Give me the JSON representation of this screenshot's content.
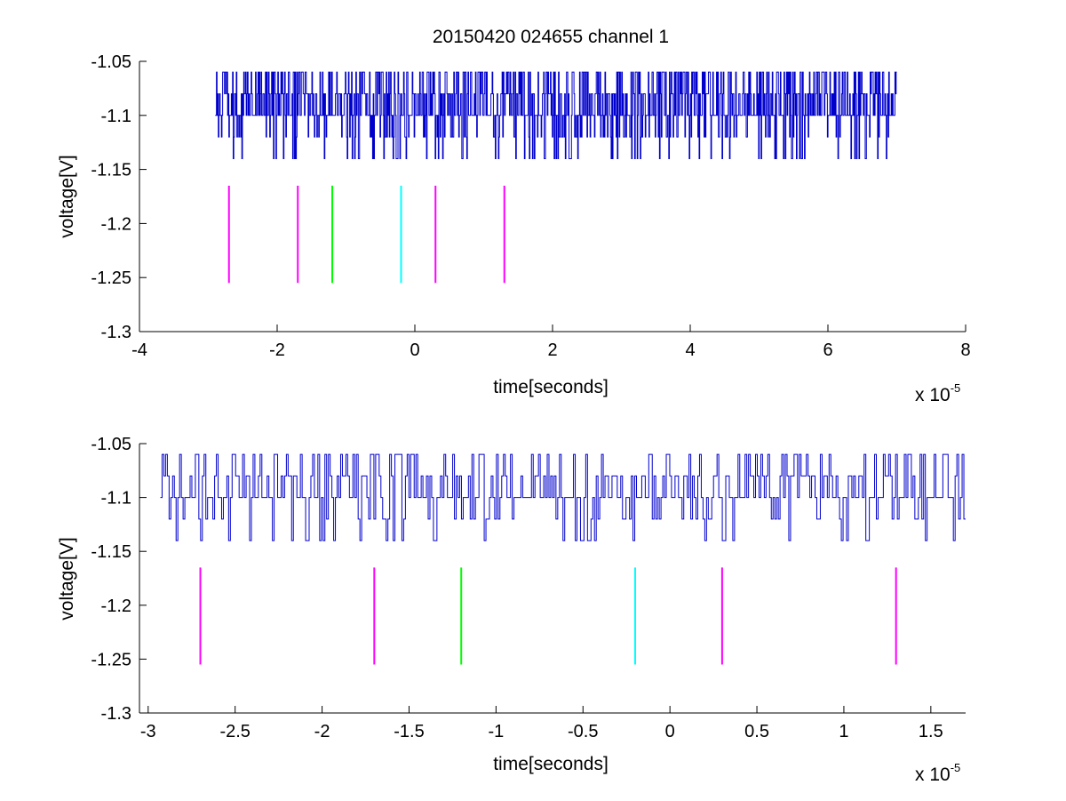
{
  "title": "20150420 024655 channel 1",
  "colors": {
    "signal": "#0000cc",
    "magenta": "#ff00ff",
    "green": "#00ff00",
    "cyan": "#00ffff",
    "axes": "#000000",
    "background": "#ffffff"
  },
  "chart_data": [
    {
      "type": "line",
      "title": "20150420 024655 channel 1",
      "xlabel": "time[seconds]",
      "ylabel": "voltage[V]",
      "x_multiplier_base": "x 10",
      "x_multiplier_exp": "-5",
      "xlim": [
        -4,
        8
      ],
      "ylim": [
        -1.3,
        -1.05
      ],
      "xticks": [
        -4,
        -2,
        0,
        2,
        4,
        6,
        8
      ],
      "xtick_labels": [
        "-4",
        "-2",
        "0",
        "2",
        "4",
        "6",
        "8"
      ],
      "yticks": [
        -1.3,
        -1.25,
        -1.2,
        -1.15,
        -1.1,
        -1.05
      ],
      "ytick_labels": [
        "-1.3",
        "-1.25",
        "-1.2",
        "-1.15",
        "-1.1",
        "-1.05"
      ],
      "grid": false,
      "legend": "none",
      "signal": {
        "x_start": -2.9,
        "x_end": 7.0,
        "baseline": -1.1,
        "levels": [
          -1.06,
          -1.08,
          -1.1,
          -1.12,
          -1.14
        ],
        "steps": 1100,
        "seed": 11
      },
      "markers": [
        {
          "x": -2.7,
          "y_top": -1.165,
          "y_bottom": -1.255,
          "color": "magenta"
        },
        {
          "x": -1.7,
          "y_top": -1.165,
          "y_bottom": -1.255,
          "color": "magenta"
        },
        {
          "x": -1.2,
          "y_top": -1.165,
          "y_bottom": -1.255,
          "color": "green"
        },
        {
          "x": -0.2,
          "y_top": -1.165,
          "y_bottom": -1.255,
          "color": "cyan"
        },
        {
          "x": 0.3,
          "y_top": -1.165,
          "y_bottom": -1.255,
          "color": "magenta"
        },
        {
          "x": 1.3,
          "y_top": -1.165,
          "y_bottom": -1.255,
          "color": "magenta"
        }
      ]
    },
    {
      "type": "line",
      "title": "",
      "xlabel": "time[seconds]",
      "ylabel": "voltage[V]",
      "x_multiplier_base": "x 10",
      "x_multiplier_exp": "-5",
      "xlim": [
        -3.05,
        1.7
      ],
      "ylim": [
        -1.3,
        -1.05
      ],
      "xticks": [
        -3,
        -2.5,
        -2,
        -1.5,
        -1,
        -0.5,
        0,
        0.5,
        1,
        1.5
      ],
      "xtick_labels": [
        "-3",
        "-2.5",
        "-2",
        "-1.5",
        "-1",
        "-0.5",
        "0",
        "0.5",
        "1",
        "1.5"
      ],
      "yticks": [
        -1.3,
        -1.25,
        -1.2,
        -1.15,
        -1.1,
        -1.05
      ],
      "ytick_labels": [
        "-1.3",
        "-1.25",
        "-1.2",
        "-1.15",
        "-1.1",
        "-1.05"
      ],
      "grid": false,
      "legend": "none",
      "signal": {
        "x_start": -2.93,
        "x_end": 1.7,
        "baseline": -1.1,
        "levels": [
          -1.06,
          -1.08,
          -1.1,
          -1.12,
          -1.14
        ],
        "steps": 460,
        "seed": 23
      },
      "markers": [
        {
          "x": -2.7,
          "y_top": -1.165,
          "y_bottom": -1.255,
          "color": "magenta"
        },
        {
          "x": -1.7,
          "y_top": -1.165,
          "y_bottom": -1.255,
          "color": "magenta"
        },
        {
          "x": -1.2,
          "y_top": -1.165,
          "y_bottom": -1.255,
          "color": "green"
        },
        {
          "x": -0.2,
          "y_top": -1.165,
          "y_bottom": -1.255,
          "color": "cyan"
        },
        {
          "x": 0.3,
          "y_top": -1.165,
          "y_bottom": -1.255,
          "color": "magenta"
        },
        {
          "x": 1.3,
          "y_top": -1.165,
          "y_bottom": -1.255,
          "color": "magenta"
        }
      ]
    }
  ]
}
